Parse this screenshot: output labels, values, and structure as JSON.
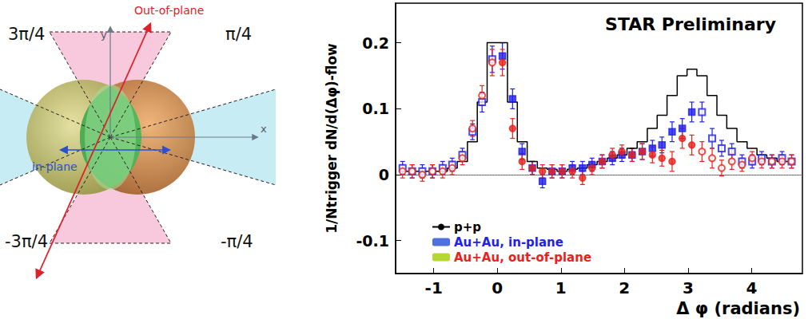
{
  "chart_data": {
    "type": "scatter",
    "title": "STAR Preliminary",
    "xlabel": "Δ φ (radians)",
    "ylabel": "1/Ntrigger dN/d(Δφ)-flow",
    "xlim": [
      -1.6,
      4.8
    ],
    "ylim": [
      -0.15,
      0.26
    ],
    "xticks": [
      -1,
      0,
      1,
      2,
      3,
      4
    ],
    "yticks": [
      -0.1,
      0,
      0.1,
      0.2
    ],
    "grid": false,
    "legend": "lower left",
    "series": [
      {
        "name": "p+p",
        "type": "line",
        "line_style": "step",
        "color": "#000000",
        "x": [
          -1.49,
          -1.34,
          -1.18,
          -1.02,
          -0.86,
          -0.71,
          -0.55,
          -0.39,
          -0.24,
          -0.08,
          0.08,
          0.24,
          0.39,
          0.55,
          0.71,
          0.86,
          1.02,
          1.18,
          1.34,
          1.49,
          1.65,
          1.81,
          1.96,
          2.12,
          2.28,
          2.44,
          2.59,
          2.75,
          2.91,
          3.06,
          3.22,
          3.38,
          3.53,
          3.69,
          3.85,
          4.01,
          4.16,
          4.32,
          4.48,
          4.63
        ],
        "values": [
          0.005,
          0.005,
          0.005,
          0.005,
          0.005,
          0.01,
          0.02,
          0.05,
          0.11,
          0.2,
          0.2,
          0.11,
          0.05,
          0.02,
          0.01,
          0.008,
          0.005,
          0.008,
          0.01,
          0.015,
          0.02,
          0.025,
          0.03,
          0.04,
          0.05,
          0.07,
          0.09,
          0.12,
          0.15,
          0.16,
          0.15,
          0.12,
          0.09,
          0.07,
          0.05,
          0.04,
          0.03,
          0.025,
          0.02,
          0.02
        ]
      },
      {
        "name": "Au+Au, in-plane",
        "type": "scatter",
        "marker": "square",
        "color": "#1e1ef0",
        "x": [
          0.08,
          0.24,
          0.39,
          0.55,
          0.71,
          0.86,
          1.02,
          1.18,
          1.34,
          1.49,
          1.65,
          1.81,
          1.96,
          2.12,
          2.28,
          2.44,
          2.59,
          2.75,
          2.91,
          3.06
        ],
        "values": [
          0.18,
          0.115,
          0.035,
          0.01,
          -0.01,
          0.005,
          0.005,
          0.01,
          0.01,
          0.015,
          0.02,
          0.025,
          0.03,
          0.03,
          0.035,
          0.04,
          0.045,
          0.065,
          0.07,
          0.095
        ],
        "errors": [
          0.02,
          0.015,
          0.012,
          0.01,
          0.01,
          0.01,
          0.01,
          0.01,
          0.01,
          0.01,
          0.01,
          0.01,
          0.01,
          0.01,
          0.012,
          0.012,
          0.012,
          0.015,
          0.015,
          0.015
        ]
      },
      {
        "name": "Au+Au, in-plane",
        "type": "scatter",
        "marker": "square-open",
        "color": "#1e1ef0",
        "x": [
          -1.49,
          -1.34,
          -1.18,
          -1.02,
          -0.86,
          -0.71,
          -0.55,
          -0.39,
          -0.24,
          -0.08,
          3.22,
          3.38,
          3.53,
          3.69,
          3.85,
          4.01,
          4.16,
          4.32,
          4.48,
          4.63
        ],
        "values": [
          0.01,
          0.005,
          0.005,
          0.005,
          0.01,
          0.015,
          0.03,
          0.065,
          0.11,
          0.175,
          0.095,
          0.055,
          0.04,
          0.035,
          0.02,
          0.02,
          0.025,
          0.02,
          0.025,
          0.02
        ],
        "errors": [
          0.01,
          0.01,
          0.01,
          0.01,
          0.01,
          0.01,
          0.01,
          0.012,
          0.015,
          0.02,
          0.015,
          0.015,
          0.012,
          0.012,
          0.01,
          0.01,
          0.01,
          0.01,
          0.01,
          0.01
        ]
      },
      {
        "name": "Au+Au, out-of-plane",
        "type": "scatter",
        "marker": "circle",
        "color": "#e8221c",
        "x": [
          0.08,
          0.24,
          0.39,
          0.55,
          0.71,
          0.86,
          1.02,
          1.18,
          1.34,
          1.49,
          1.65,
          1.81,
          1.96,
          2.12,
          2.28,
          2.44,
          2.59,
          2.75,
          2.91,
          3.06
        ],
        "values": [
          0.17,
          0.07,
          0.02,
          0.01,
          0.005,
          0.005,
          0.005,
          0.005,
          -0.005,
          0.01,
          0.02,
          0.03,
          0.035,
          0.03,
          0.035,
          0.03,
          0.025,
          0.02,
          0.055,
          0.045
        ],
        "errors": [
          0.02,
          0.015,
          0.012,
          0.01,
          0.01,
          0.01,
          0.01,
          0.01,
          0.01,
          0.01,
          0.01,
          0.01,
          0.01,
          0.01,
          0.012,
          0.012,
          0.012,
          0.015,
          0.015,
          0.015
        ]
      },
      {
        "name": "Au+Au, out-of-plane",
        "type": "scatter",
        "marker": "circle-open",
        "color": "#e8221c",
        "x": [
          -1.49,
          -1.34,
          -1.18,
          -1.02,
          -0.86,
          -0.71,
          -0.55,
          -0.39,
          -0.24,
          -0.08,
          3.22,
          3.38,
          3.53,
          3.69,
          3.85,
          4.01,
          4.16,
          4.32,
          4.48,
          4.63
        ],
        "values": [
          0.005,
          0.005,
          0,
          0.005,
          0.005,
          0.01,
          0.025,
          0.07,
          0.12,
          0.17,
          0.035,
          0.025,
          0.01,
          0.02,
          0.015,
          0.025,
          0.02,
          0.02,
          0.02,
          0.02
        ],
        "errors": [
          0.01,
          0.01,
          0.01,
          0.01,
          0.01,
          0.01,
          0.01,
          0.012,
          0.015,
          0.02,
          0.015,
          0.015,
          0.012,
          0.012,
          0.01,
          0.01,
          0.01,
          0.01,
          0.01,
          0.01
        ]
      }
    ]
  },
  "diagram": {
    "angle_labels": [
      "3π/4",
      "π/4",
      "-3π/4",
      "-π/4"
    ],
    "out_of_plane": "Out-of-plane",
    "in_plane": "in-plane",
    "x_axis": "x",
    "y_axis": "y"
  }
}
